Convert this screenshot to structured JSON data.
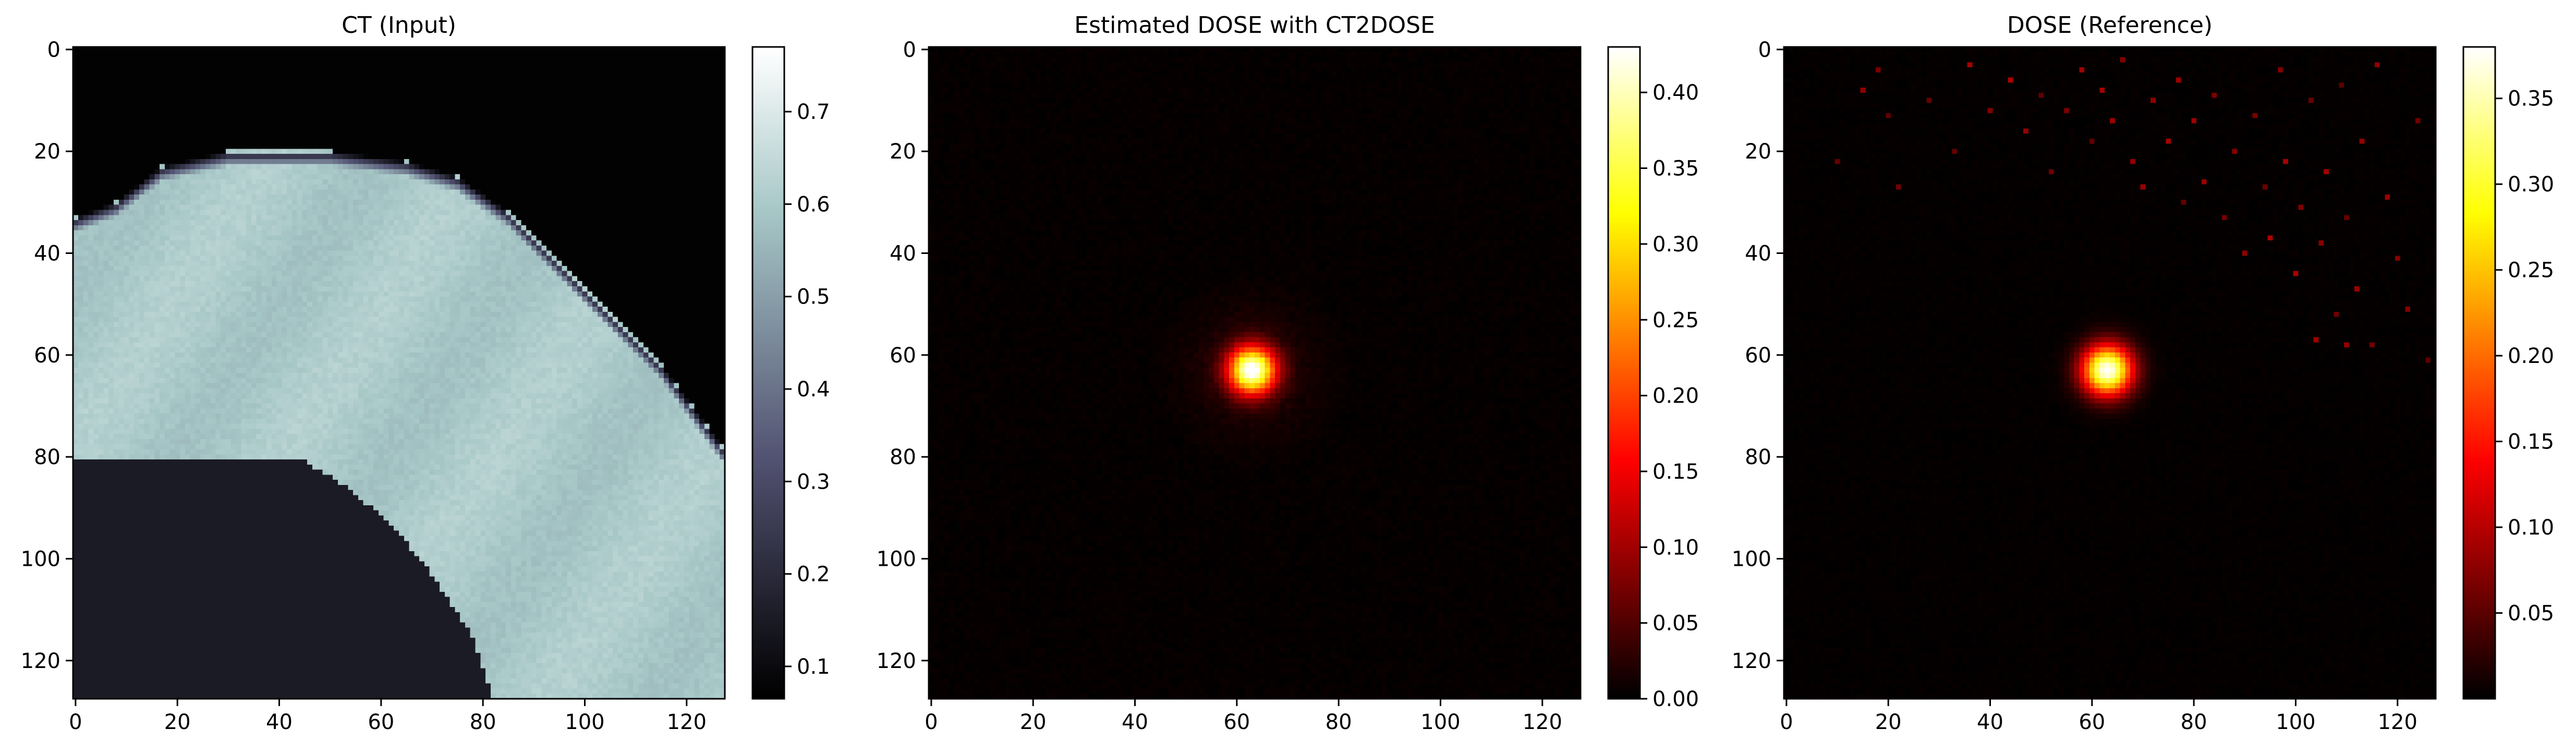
{
  "chart_data": [
    {
      "type": "heatmap",
      "title": "CT (Input)",
      "colormap": "bone",
      "xlim": [
        0,
        127
      ],
      "ylim": [
        127,
        0
      ],
      "xticks": [
        "0",
        "20",
        "40",
        "60",
        "80",
        "100",
        "120"
      ],
      "yticks": [
        "0",
        "20",
        "40",
        "60",
        "80",
        "100",
        "120"
      ],
      "colorbar": {
        "range": [
          0.065,
          0.77
        ],
        "ticks": [
          "0.1",
          "0.2",
          "0.3",
          "0.4",
          "0.5",
          "0.6",
          "0.7"
        ]
      },
      "content": {
        "background_value": 0.07,
        "tissue_value": 0.6,
        "lung_value": 0.15,
        "body_edge_points": [
          [
            0,
            33
          ],
          [
            8,
            30
          ],
          [
            17,
            23
          ],
          [
            30,
            20
          ],
          [
            50,
            20
          ],
          [
            65,
            22
          ],
          [
            75,
            25
          ],
          [
            85,
            32
          ],
          [
            95,
            42
          ],
          [
            105,
            52
          ],
          [
            115,
            62
          ],
          [
            127,
            78
          ]
        ],
        "lung_edge_points": [
          [
            0,
            80
          ],
          [
            10,
            77
          ],
          [
            20,
            75
          ],
          [
            28,
            75
          ],
          [
            40,
            78
          ],
          [
            52,
            85
          ],
          [
            62,
            93
          ],
          [
            70,
            103
          ],
          [
            78,
            115
          ],
          [
            82,
            127
          ]
        ]
      }
    },
    {
      "type": "heatmap",
      "title": "Estimated DOSE with CT2DOSE",
      "colormap": "hot",
      "xlim": [
        0,
        127
      ],
      "ylim": [
        127,
        0
      ],
      "xticks": [
        "0",
        "20",
        "40",
        "60",
        "80",
        "100",
        "120"
      ],
      "yticks": [
        "0",
        "20",
        "40",
        "60",
        "80",
        "100",
        "120"
      ],
      "colorbar": {
        "range": [
          0.0,
          0.43
        ],
        "ticks": [
          "0.00",
          "0.05",
          "0.10",
          "0.15",
          "0.20",
          "0.25",
          "0.30",
          "0.35",
          "0.40"
        ]
      },
      "content": {
        "hotspot_center": [
          63,
          63
        ],
        "hotspot_peak": 0.43,
        "halo_radius": 20
      }
    },
    {
      "type": "heatmap",
      "title": "DOSE (Reference)",
      "colormap": "hot",
      "xlim": [
        0,
        127
      ],
      "ylim": [
        127,
        0
      ],
      "xticks": [
        "0",
        "20",
        "40",
        "60",
        "80",
        "100",
        "120"
      ],
      "yticks": [
        "0",
        "20",
        "40",
        "60",
        "80",
        "100",
        "120"
      ],
      "colorbar": {
        "range": [
          0.0,
          0.38
        ],
        "ticks": [
          "0.05",
          "0.10",
          "0.15",
          "0.20",
          "0.25",
          "0.30",
          "0.35"
        ]
      },
      "content": {
        "hotspot_center": [
          63,
          63
        ],
        "hotspot_peak": 0.38,
        "scatter_points": [
          [
            10,
            22
          ],
          [
            15,
            8
          ],
          [
            18,
            4
          ],
          [
            20,
            13
          ],
          [
            22,
            27
          ],
          [
            28,
            10
          ],
          [
            33,
            20
          ],
          [
            36,
            3
          ],
          [
            40,
            12
          ],
          [
            44,
            6
          ],
          [
            47,
            16
          ],
          [
            50,
            9
          ],
          [
            52,
            24
          ],
          [
            55,
            12
          ],
          [
            58,
            4
          ],
          [
            60,
            18
          ],
          [
            62,
            8
          ],
          [
            64,
            14
          ],
          [
            66,
            2
          ],
          [
            68,
            22
          ],
          [
            70,
            27
          ],
          [
            72,
            10
          ],
          [
            75,
            18
          ],
          [
            77,
            6
          ],
          [
            78,
            30
          ],
          [
            80,
            14
          ],
          [
            82,
            26
          ],
          [
            84,
            9
          ],
          [
            86,
            33
          ],
          [
            88,
            20
          ],
          [
            90,
            40
          ],
          [
            92,
            13
          ],
          [
            94,
            27
          ],
          [
            95,
            37
          ],
          [
            97,
            4
          ],
          [
            98,
            22
          ],
          [
            100,
            44
          ],
          [
            101,
            31
          ],
          [
            103,
            10
          ],
          [
            105,
            38
          ],
          [
            106,
            24
          ],
          [
            108,
            52
          ],
          [
            109,
            7
          ],
          [
            110,
            33
          ],
          [
            112,
            47
          ],
          [
            113,
            18
          ],
          [
            115,
            58
          ],
          [
            116,
            3
          ],
          [
            118,
            29
          ],
          [
            120,
            41
          ],
          [
            122,
            51
          ],
          [
            124,
            14
          ],
          [
            126,
            61
          ],
          [
            110,
            58
          ],
          [
            104,
            57
          ]
        ]
      }
    }
  ]
}
